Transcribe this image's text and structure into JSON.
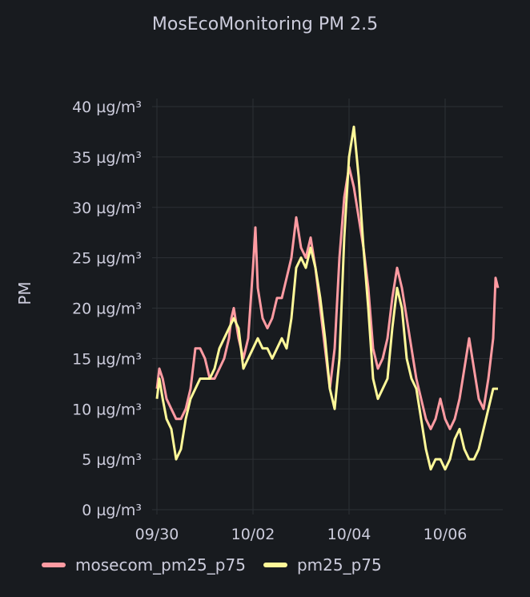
{
  "panel": {
    "title": "MosEcoMonitoring PM 2.5"
  },
  "chart_data": {
    "type": "line",
    "title": "MosEcoMonitoring PM 2.5",
    "ylabel": "PM",
    "xlabel": "",
    "ylim": [
      0,
      40
    ],
    "xlim": [
      0,
      7.2
    ],
    "y_ticks": [
      0,
      5,
      10,
      15,
      20,
      25,
      30,
      35,
      40
    ],
    "y_tick_labels": [
      "0 µg/m³",
      "5 µg/m³",
      "10 µg/m³",
      "15 µg/m³",
      "20 µg/m³",
      "25 µg/m³",
      "30 µg/m³",
      "35 µg/m³",
      "40 µg/m³"
    ],
    "x_ticks": [
      0,
      2,
      4,
      6
    ],
    "x_tick_labels": [
      "09/30",
      "10/02",
      "10/04",
      "10/06"
    ],
    "grid": true,
    "legend_position": "bottom-left",
    "series": [
      {
        "name": "mosecom_pm25_p75",
        "color": "#ff9ba2",
        "x": [
          0.0,
          0.05,
          0.12,
          0.2,
          0.3,
          0.4,
          0.5,
          0.6,
          0.7,
          0.75,
          0.8,
          0.9,
          1.0,
          1.1,
          1.2,
          1.3,
          1.4,
          1.5,
          1.55,
          1.6,
          1.7,
          1.8,
          1.9,
          2.0,
          2.05,
          2.1,
          2.2,
          2.3,
          2.4,
          2.5,
          2.6,
          2.7,
          2.8,
          2.9,
          3.0,
          3.1,
          3.2,
          3.3,
          3.4,
          3.5,
          3.6,
          3.7,
          3.8,
          3.9,
          4.0,
          4.1,
          4.2,
          4.3,
          4.4,
          4.5,
          4.6,
          4.7,
          4.8,
          4.9,
          5.0,
          5.1,
          5.2,
          5.3,
          5.4,
          5.5,
          5.6,
          5.7,
          5.8,
          5.9,
          6.0,
          6.1,
          6.2,
          6.3,
          6.4,
          6.5,
          6.6,
          6.7,
          6.8,
          6.9,
          7.0,
          7.05,
          7.1
        ],
        "values": [
          12,
          14,
          13,
          11,
          10,
          9,
          9,
          10,
          12,
          14,
          16,
          16,
          15,
          13,
          13,
          14,
          15,
          17,
          19,
          20,
          17,
          15,
          17,
          24,
          28,
          22,
          19,
          18,
          19,
          21,
          21,
          23,
          25,
          29,
          26,
          25,
          27,
          24,
          20,
          16,
          12,
          16,
          25,
          31,
          34,
          32,
          29,
          26,
          22,
          16,
          14,
          15,
          17,
          21,
          24,
          22,
          19,
          16,
          13,
          11,
          9,
          8,
          9,
          11,
          9,
          8,
          9,
          11,
          14,
          17,
          14,
          11,
          10,
          13,
          17,
          23,
          22
        ]
      },
      {
        "name": "pm25_p75",
        "color": "#fff899",
        "x": [
          0.0,
          0.05,
          0.12,
          0.2,
          0.3,
          0.4,
          0.5,
          0.6,
          0.7,
          0.8,
          0.9,
          1.0,
          1.1,
          1.2,
          1.3,
          1.4,
          1.5,
          1.6,
          1.7,
          1.8,
          1.9,
          2.0,
          2.1,
          2.2,
          2.3,
          2.4,
          2.5,
          2.6,
          2.7,
          2.8,
          2.9,
          3.0,
          3.1,
          3.2,
          3.3,
          3.4,
          3.5,
          3.6,
          3.7,
          3.8,
          3.9,
          4.0,
          4.1,
          4.2,
          4.3,
          4.4,
          4.5,
          4.6,
          4.7,
          4.8,
          4.9,
          5.0,
          5.1,
          5.2,
          5.3,
          5.4,
          5.5,
          5.6,
          5.7,
          5.8,
          5.9,
          6.0,
          6.1,
          6.2,
          6.3,
          6.4,
          6.5,
          6.6,
          6.7,
          6.8,
          6.9,
          7.0,
          7.1
        ],
        "values": [
          11,
          13,
          11,
          9,
          8,
          5,
          6,
          9,
          11,
          12,
          13,
          13,
          13,
          14,
          16,
          17,
          18,
          19,
          18,
          14,
          15,
          16,
          17,
          16,
          16,
          15,
          16,
          17,
          16,
          19,
          24,
          25,
          24,
          26,
          24,
          21,
          17,
          12,
          10,
          15,
          27,
          35,
          38,
          33,
          26,
          20,
          13,
          11,
          12,
          13,
          18,
          22,
          20,
          15,
          13,
          12,
          9,
          6,
          4,
          5,
          5,
          4,
          5,
          7,
          8,
          6,
          5,
          5,
          6,
          8,
          10,
          12,
          12
        ]
      }
    ]
  }
}
